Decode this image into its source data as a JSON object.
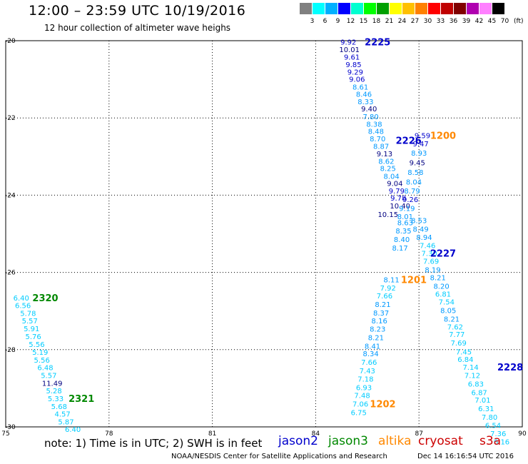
{
  "header": {
    "title": "12:00 – 23:59 UTC 10/19/2016",
    "subtitle": "12 hour collection of altimeter wave heighs"
  },
  "scale": {
    "colors": [
      "#808080",
      "#00ffff",
      "#00b0ff",
      "#0000ff",
      "#00ffd0",
      "#00ff00",
      "#00a000",
      "#ffff00",
      "#ffc000",
      "#ff8000",
      "#ff0000",
      "#c00000",
      "#800000",
      "#b000b0",
      "#ff80ff",
      "#000000"
    ],
    "labels": [
      "3",
      "6",
      "9",
      "12",
      "15",
      "18",
      "21",
      "24",
      "27",
      "30",
      "33",
      "36",
      "39",
      "42",
      "45",
      "70"
    ],
    "unit": "(ft)"
  },
  "note": "note:  1) Time is in UTC;  2) SWH is in feet",
  "legend": [
    {
      "name": "jason2",
      "color": "#0000cc"
    },
    {
      "name": "jason3",
      "color": "#008800"
    },
    {
      "name": "altika",
      "color": "#ff8800"
    },
    {
      "name": "cryosat",
      "color": "#cc0000"
    },
    {
      "name": "s3a",
      "color": "#cc0000"
    }
  ],
  "footer": {
    "left": "NOAA/NESDIS Center for Satellite Applications and Research",
    "right": "Dec 14 16:16:54 UTC 2016"
  },
  "chart_data": {
    "type": "scatter",
    "xlim": [
      75,
      90
    ],
    "ylim": [
      -30,
      -20
    ],
    "xticks": [
      "75",
      "78",
      "81",
      "84",
      "87",
      "90"
    ],
    "yticks": [
      "-20",
      "-22",
      "-24",
      "-26",
      "-28",
      "-30"
    ],
    "grid": true,
    "series": [
      {
        "name": "2225",
        "label_pos": [
          85.8,
          -20.03
        ],
        "label_color": "#0000cc",
        "points": [
          {
            "x": 84.95,
            "y": -20.03,
            "v": "9.92",
            "c": "#0000cc"
          },
          {
            "x": 84.98,
            "y": -20.22,
            "v": "10.01",
            "c": "#000080"
          },
          {
            "x": 85.05,
            "y": -20.42,
            "v": "9.61",
            "c": "#0000cc"
          },
          {
            "x": 85.1,
            "y": -20.61,
            "v": "9.85",
            "c": "#0000cc"
          },
          {
            "x": 85.15,
            "y": -20.8,
            "v": "9.29",
            "c": "#0000cc"
          },
          {
            "x": 85.2,
            "y": -20.99,
            "v": "9.06",
            "c": "#0000cc"
          },
          {
            "x": 85.3,
            "y": -21.19,
            "v": "8.61",
            "c": "#0099ff"
          },
          {
            "x": 85.4,
            "y": -21.38,
            "v": "8.46",
            "c": "#0099ff"
          },
          {
            "x": 85.45,
            "y": -21.57,
            "v": "8.33",
            "c": "#0099ff"
          },
          {
            "x": 85.55,
            "y": -21.76,
            "v": "9.40",
            "c": "#000080"
          },
          {
            "x": 85.6,
            "y": -21.96,
            "v": "7.80",
            "c": "#0099ff"
          },
          {
            "x": 85.7,
            "y": -22.15,
            "v": "8.38",
            "c": "#0099ff"
          },
          {
            "x": 85.75,
            "y": -22.34,
            "v": "8.48",
            "c": "#0099ff"
          },
          {
            "x": 85.8,
            "y": -22.53,
            "v": "8.70",
            "c": "#0099ff"
          },
          {
            "x": 85.9,
            "y": -22.73,
            "v": "8.87",
            "c": "#0099ff"
          },
          {
            "x": 86.0,
            "y": -22.92,
            "v": "9.13",
            "c": "#000080"
          },
          {
            "x": 86.05,
            "y": -23.11,
            "v": "8.62",
            "c": "#0099ff"
          },
          {
            "x": 86.1,
            "y": -23.3,
            "v": "8.25",
            "c": "#0099ff"
          },
          {
            "x": 86.2,
            "y": -23.5,
            "v": "8.04",
            "c": "#0099ff"
          },
          {
            "x": 86.3,
            "y": -23.69,
            "v": "9.04",
            "c": "#000080"
          },
          {
            "x": 86.35,
            "y": -23.88,
            "v": "9.79",
            "c": "#0000cc"
          },
          {
            "x": 86.4,
            "y": -24.07,
            "v": "9.78",
            "c": "#0000cc"
          },
          {
            "x": 86.45,
            "y": -24.27,
            "v": "10.40",
            "c": "#000080"
          },
          {
            "x": 86.1,
            "y": -24.49,
            "v": "10.15",
            "c": "#000080"
          }
        ]
      },
      {
        "name": "2226",
        "label_pos": [
          86.7,
          -22.58
        ],
        "label_color": "#0000cc",
        "points": [
          {
            "x": 87.1,
            "y": -22.45,
            "v": "9.59",
            "c": "#0000cc"
          },
          {
            "x": 87.05,
            "y": -22.66,
            "v": "9.47",
            "c": "#0000cc"
          },
          {
            "x": 87.0,
            "y": -22.9,
            "v": "8.93",
            "c": "#0099ff"
          },
          {
            "x": 86.95,
            "y": -23.15,
            "v": "9.45",
            "c": "#000080"
          },
          {
            "x": 86.9,
            "y": -23.4,
            "v": "8.58",
            "c": "#0099ff"
          },
          {
            "x": 86.85,
            "y": -23.65,
            "v": "8.04",
            "c": "#0099ff"
          },
          {
            "x": 86.8,
            "y": -23.88,
            "v": "8.79",
            "c": "#0099ff"
          },
          {
            "x": 86.75,
            "y": -24.1,
            "v": "9.26",
            "c": "#0000cc"
          },
          {
            "x": 86.65,
            "y": -24.33,
            "v": "9.19",
            "c": "#0099ff"
          },
          {
            "x": 86.6,
            "y": -24.55,
            "v": "8.01",
            "c": "#0099ff"
          }
        ]
      },
      {
        "name": "2227",
        "label_pos": [
          87.7,
          -25.5
        ],
        "label_color": "#0000cc",
        "points": [
          {
            "x": 87.0,
            "y": -24.65,
            "v": "8.53",
            "c": "#0099ff"
          },
          {
            "x": 87.05,
            "y": -24.87,
            "v": "8.49",
            "c": "#0099ff"
          },
          {
            "x": 87.15,
            "y": -25.08,
            "v": "8.94",
            "c": "#0099ff"
          },
          {
            "x": 87.25,
            "y": -25.3,
            "v": "7.46",
            "c": "#00ccff"
          },
          {
            "x": 87.3,
            "y": -25.5,
            "v": "7.30",
            "c": "#00ccff"
          },
          {
            "x": 87.35,
            "y": -25.7,
            "v": "7.69",
            "c": "#00ccff"
          },
          {
            "x": 87.4,
            "y": -25.92,
            "v": "8.19",
            "c": "#0099ff"
          },
          {
            "x": 87.55,
            "y": -26.13,
            "v": "8.21",
            "c": "#0099ff"
          },
          {
            "x": 87.65,
            "y": -26.35,
            "v": "8.20",
            "c": "#0099ff"
          },
          {
            "x": 87.7,
            "y": -26.55,
            "v": "6.81",
            "c": "#00ccff"
          },
          {
            "x": 87.8,
            "y": -26.76,
            "v": "7.54",
            "c": "#00ccff"
          },
          {
            "x": 87.85,
            "y": -26.98,
            "v": "8.05",
            "c": "#0099ff"
          },
          {
            "x": 87.95,
            "y": -27.2,
            "v": "8.21",
            "c": "#0099ff"
          },
          {
            "x": 88.05,
            "y": -27.4,
            "v": "7.62",
            "c": "#00ccff"
          },
          {
            "x": 88.1,
            "y": -27.6,
            "v": "7.77",
            "c": "#00ccff"
          },
          {
            "x": 88.15,
            "y": -27.82,
            "v": "7.69",
            "c": "#00ccff"
          },
          {
            "x": 88.3,
            "y": -28.05,
            "v": "7.45",
            "c": "#00ccff"
          },
          {
            "x": 88.35,
            "y": -28.24,
            "v": "6.84",
            "c": "#00ccff"
          }
        ]
      },
      {
        "name": "2228",
        "label_pos": [
          89.65,
          -28.45
        ],
        "label_color": "#0000cc",
        "points": [
          {
            "x": 88.5,
            "y": -28.45,
            "v": "7.14",
            "c": "#00ccff"
          },
          {
            "x": 88.55,
            "y": -28.66,
            "v": "7.12",
            "c": "#00ccff"
          },
          {
            "x": 88.65,
            "y": -28.88,
            "v": "6.83",
            "c": "#00ccff"
          },
          {
            "x": 88.75,
            "y": -29.1,
            "v": "6.87",
            "c": "#00ccff"
          },
          {
            "x": 88.85,
            "y": -29.3,
            "v": "7.01",
            "c": "#00ccff"
          },
          {
            "x": 88.95,
            "y": -29.52,
            "v": "6.31",
            "c": "#00ccff"
          },
          {
            "x": 89.05,
            "y": -29.74,
            "v": "7.80",
            "c": "#00ccff"
          },
          {
            "x": 89.15,
            "y": -29.95,
            "v": "6.54",
            "c": "#00ccff"
          },
          {
            "x": 89.3,
            "y": -30.17,
            "v": "7.36",
            "c": "#00ccff"
          },
          {
            "x": 89.4,
            "y": -30.38,
            "v": "6.16",
            "c": "#00ccff"
          }
        ]
      },
      {
        "name": "1200",
        "label_pos": [
          87.7,
          -22.45
        ],
        "label_color": "#ff8800",
        "points": []
      },
      {
        "name": "1201",
        "label_pos": [
          86.85,
          -26.18
        ],
        "label_color": "#ff8800",
        "points": [
          {
            "x": 86.2,
            "y": -26.18,
            "v": "8.11",
            "c": "#0099ff"
          },
          {
            "x": 86.1,
            "y": -26.4,
            "v": "7.92",
            "c": "#00ccff"
          },
          {
            "x": 86.0,
            "y": -26.6,
            "v": "7.66",
            "c": "#00ccff"
          },
          {
            "x": 85.95,
            "y": -26.82,
            "v": "8.21",
            "c": "#0099ff"
          },
          {
            "x": 85.9,
            "y": -27.04,
            "v": "8.37",
            "c": "#0099ff"
          },
          {
            "x": 85.85,
            "y": -27.25,
            "v": "8.16",
            "c": "#0099ff"
          },
          {
            "x": 85.8,
            "y": -27.46,
            "v": "8.23",
            "c": "#0099ff"
          },
          {
            "x": 85.75,
            "y": -27.68,
            "v": "8.21",
            "c": "#0099ff"
          },
          {
            "x": 85.65,
            "y": -27.9,
            "v": "8.41",
            "c": "#0099ff"
          },
          {
            "x": 85.6,
            "y": -28.1,
            "v": "8.34",
            "c": "#0099ff"
          },
          {
            "x": 85.55,
            "y": -28.32,
            "v": "7.66",
            "c": "#00ccff"
          },
          {
            "x": 85.5,
            "y": -28.54,
            "v": "7.43",
            "c": "#00ccff"
          },
          {
            "x": 85.45,
            "y": -28.75,
            "v": "7.18",
            "c": "#00ccff"
          },
          {
            "x": 85.4,
            "y": -28.97,
            "v": "6.93",
            "c": "#00ccff"
          },
          {
            "x": 85.35,
            "y": -29.18,
            "v": "7.48",
            "c": "#00ccff"
          }
        ]
      },
      {
        "name": "1202",
        "label_pos": [
          85.95,
          -29.4
        ],
        "label_color": "#ff8800",
        "points": [
          {
            "x": 85.3,
            "y": -29.4,
            "v": "7.06",
            "c": "#00ccff"
          },
          {
            "x": 85.25,
            "y": -29.62,
            "v": "6.75",
            "c": "#00ccff"
          }
        ]
      },
      {
        "name": "1200-cont",
        "label_pos": null,
        "label_color": "#ff8800",
        "points": [
          {
            "x": 86.6,
            "y": -24.7,
            "v": "8.63",
            "c": "#0099ff"
          },
          {
            "x": 86.55,
            "y": -24.92,
            "v": "8.35",
            "c": "#0099ff"
          },
          {
            "x": 86.5,
            "y": -25.14,
            "v": "8.40",
            "c": "#0099ff"
          },
          {
            "x": 86.45,
            "y": -25.36,
            "v": "8.17",
            "c": "#0099ff"
          }
        ]
      },
      {
        "name": "2320",
        "label_pos": [
          76.15,
          -26.65
        ],
        "label_color": "#008800",
        "points": [
          {
            "x": 75.45,
            "y": -26.65,
            "v": "6.40",
            "c": "#00ccff"
          },
          {
            "x": 75.5,
            "y": -26.85,
            "v": "6.56",
            "c": "#00ccff"
          },
          {
            "x": 75.65,
            "y": -27.05,
            "v": "5.78",
            "c": "#00ccff"
          },
          {
            "x": 75.7,
            "y": -27.25,
            "v": "5.57",
            "c": "#00ccff"
          },
          {
            "x": 75.75,
            "y": -27.45,
            "v": "5.91",
            "c": "#00ccff"
          },
          {
            "x": 75.8,
            "y": -27.65,
            "v": "5.76",
            "c": "#00ccff"
          },
          {
            "x": 75.9,
            "y": -27.86,
            "v": "5.56",
            "c": "#00ccff"
          },
          {
            "x": 76.0,
            "y": -28.06,
            "v": "5.19",
            "c": "#00ccff"
          },
          {
            "x": 76.05,
            "y": -28.26,
            "v": "5.56",
            "c": "#00ccff"
          },
          {
            "x": 76.15,
            "y": -28.46,
            "v": "6.48",
            "c": "#00ccff"
          },
          {
            "x": 76.25,
            "y": -28.66,
            "v": "5.57",
            "c": "#00ccff"
          },
          {
            "x": 76.35,
            "y": -28.86,
            "v": "11.49",
            "c": "#000080"
          },
          {
            "x": 76.4,
            "y": -29.06,
            "v": "5.28",
            "c": "#00ccff"
          }
        ]
      },
      {
        "name": "2321",
        "label_pos": [
          77.2,
          -29.26
        ],
        "label_color": "#008800",
        "points": [
          {
            "x": 76.45,
            "y": -29.26,
            "v": "5.33",
            "c": "#00ccff"
          },
          {
            "x": 76.55,
            "y": -29.46,
            "v": "5.68",
            "c": "#00ccff"
          },
          {
            "x": 76.65,
            "y": -29.66,
            "v": "4.57",
            "c": "#00ccff"
          },
          {
            "x": 76.75,
            "y": -29.86,
            "v": "5.87",
            "c": "#00ccff"
          },
          {
            "x": 76.95,
            "y": -30.06,
            "v": "6.40",
            "c": "#00ccff"
          }
        ]
      }
    ]
  }
}
